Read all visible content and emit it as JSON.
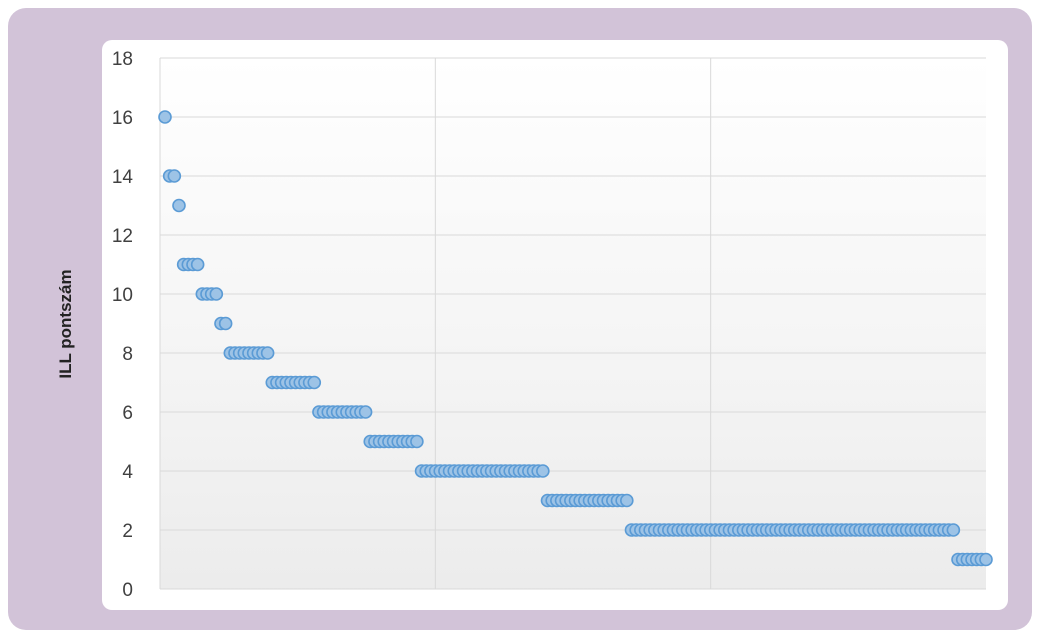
{
  "chart_data": {
    "type": "scatter",
    "title": "",
    "xlabel": "",
    "ylabel": "ILL pontszám",
    "ylim": [
      0,
      18
    ],
    "yticks": [
      0,
      2,
      4,
      6,
      8,
      10,
      12,
      14,
      16,
      18
    ],
    "xticks": [],
    "grid": true,
    "legend": "none",
    "colors": {
      "marker_fill": "#9dc3e6",
      "marker_stroke": "#5b9bd5",
      "frame": "#d2c3d8",
      "grid": "#d9d9d9"
    },
    "series": [
      {
        "values": [
          16,
          14,
          14,
          13,
          11,
          11,
          11,
          11,
          10,
          10,
          10,
          10,
          9,
          9,
          8,
          8,
          8,
          8,
          8,
          8,
          8,
          8,
          8,
          7,
          7,
          7,
          7,
          7,
          7,
          7,
          7,
          7,
          7,
          6,
          6,
          6,
          6,
          6,
          6,
          6,
          6,
          6,
          6,
          6,
          5,
          5,
          5,
          5,
          5,
          5,
          5,
          5,
          5,
          5,
          5,
          4,
          4,
          4,
          4,
          4,
          4,
          4,
          4,
          4,
          4,
          4,
          4,
          4,
          4,
          4,
          4,
          4,
          4,
          4,
          4,
          4,
          4,
          4,
          4,
          4,
          4,
          4,
          3,
          3,
          3,
          3,
          3,
          3,
          3,
          3,
          3,
          3,
          3,
          3,
          3,
          3,
          3,
          3,
          3,
          3,
          2,
          2,
          2,
          2,
          2,
          2,
          2,
          2,
          2,
          2,
          2,
          2,
          2,
          2,
          2,
          2,
          2,
          2,
          2,
          2,
          2,
          2,
          2,
          2,
          2,
          2,
          2,
          2,
          2,
          2,
          2,
          2,
          2,
          2,
          2,
          2,
          2,
          2,
          2,
          2,
          2,
          2,
          2,
          2,
          2,
          2,
          2,
          2,
          2,
          2,
          2,
          2,
          2,
          2,
          2,
          2,
          2,
          2,
          2,
          2,
          2,
          2,
          2,
          2,
          2,
          2,
          2,
          2,
          2,
          2,
          1,
          1,
          1,
          1,
          1,
          1,
          1
        ]
      }
    ]
  }
}
